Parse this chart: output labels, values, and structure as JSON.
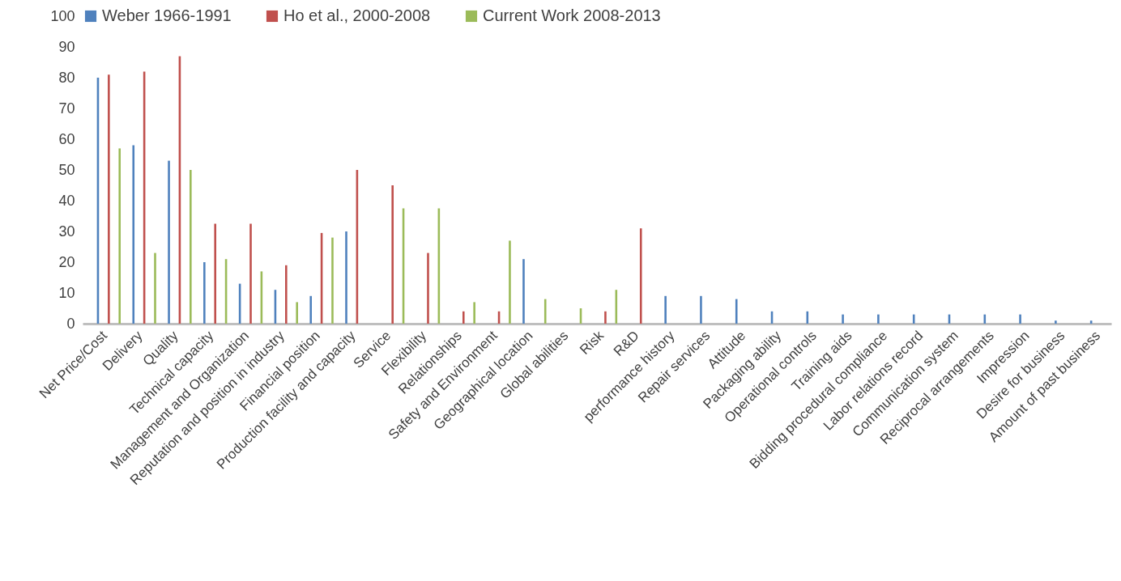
{
  "chart_data": {
    "type": "bar",
    "categories": [
      "Net Price/Cost",
      "Delivery",
      "Quality",
      "Technical capacity",
      "Management and Organization",
      "Reputation and position in industry",
      "Financial position",
      "Production facility and capacity",
      "Service",
      "Flexibility",
      "Relationships",
      "Safety and Environment",
      "Geographical location",
      "Global abilities",
      "Risk",
      "R&D",
      "performance history",
      "Repair services",
      "Attitude",
      "Packaging ability",
      "Operational controls",
      "Training aids",
      "Bidding procedural compliance",
      "Labor relations record",
      "Communication system",
      "Reciprocal arrangements",
      "Impression",
      "Desire for business",
      "Amount of past business"
    ],
    "series": [
      {
        "name": "Weber 1966-1991",
        "color": "#4f81bd",
        "values": [
          80,
          58,
          53,
          20,
          13,
          11,
          9,
          30,
          null,
          null,
          null,
          null,
          21,
          null,
          null,
          null,
          9,
          9,
          8,
          4,
          4,
          3,
          3,
          3,
          3,
          3,
          3,
          1,
          1
        ]
      },
      {
        "name": "Ho et al., 2000-2008",
        "color": "#c0504d",
        "values": [
          81,
          82,
          87,
          32.5,
          32.5,
          19,
          29.5,
          50,
          45,
          23,
          4,
          4,
          null,
          null,
          4,
          31,
          null,
          null,
          null,
          null,
          null,
          null,
          null,
          null,
          null,
          null,
          null,
          null,
          null
        ]
      },
      {
        "name": "Current Work 2008-2013",
        "color": "#9bbb59",
        "values": [
          57,
          23,
          50,
          21,
          17,
          7,
          28,
          null,
          37.5,
          37.5,
          7,
          27,
          8,
          5,
          11,
          null,
          null,
          null,
          null,
          null,
          null,
          null,
          null,
          null,
          null,
          null,
          null,
          null,
          null
        ]
      }
    ],
    "ylim": [
      0,
      100
    ],
    "yticks": [
      0,
      10,
      20,
      30,
      40,
      50,
      60,
      70,
      80,
      90,
      100
    ],
    "grid": false,
    "legend": "top"
  }
}
